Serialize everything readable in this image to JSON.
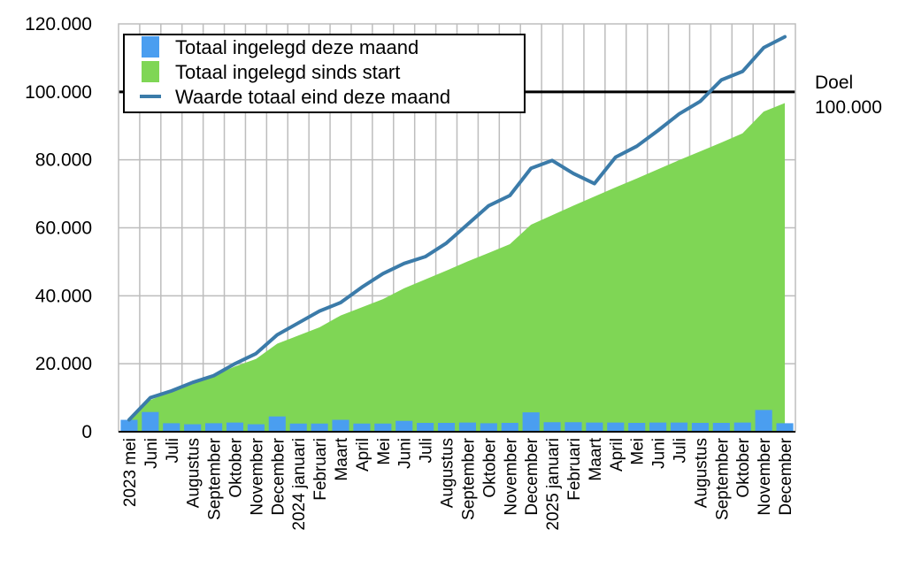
{
  "chart_data": {
    "type": "bar",
    "categories": [
      "2023 mei",
      "Juni",
      "Juli",
      "Augustus",
      "September",
      "Oktober",
      "November",
      "December",
      "2024 januari",
      "Februari",
      "Maart",
      "April",
      "Mei",
      "Juni",
      "Juli",
      "Augustus",
      "September",
      "Oktober",
      "November",
      "December",
      "2025 januari",
      "Februari",
      "Maart",
      "April",
      "Mei",
      "Juni",
      "Juli",
      "Augustus",
      "September",
      "Oktober",
      "November",
      "December"
    ],
    "series": [
      {
        "name": "Totaal ingelegd deze maand",
        "kind": "bar",
        "color": "#4a9ef0",
        "values": [
          3500,
          5800,
          2500,
          2200,
          2500,
          2700,
          2200,
          4500,
          2400,
          2400,
          3500,
          2400,
          2400,
          3200,
          2600,
          2600,
          2700,
          2500,
          2600,
          5700,
          2800,
          2800,
          2700,
          2700,
          2600,
          2700,
          2700,
          2600,
          2600,
          2700,
          6400,
          2500
        ]
      },
      {
        "name": "Totaal ingelegd sinds start",
        "kind": "area",
        "color": "#7fd655",
        "values": [
          3500,
          9300,
          11800,
          14000,
          16500,
          19200,
          21400,
          25900,
          28300,
          30700,
          34200,
          36600,
          39000,
          42200,
          44800,
          47400,
          50100,
          52600,
          55200,
          60900,
          63700,
          66500,
          69200,
          71900,
          74500,
          77200,
          79900,
          82500,
          85100,
          87800,
          94200,
          96700
        ]
      },
      {
        "name": "Waarde totaal eind deze maand",
        "kind": "line",
        "color": "#3b7ba9",
        "values": [
          3500,
          10000,
          12000,
          14500,
          16500,
          20000,
          23000,
          28500,
          32000,
          35500,
          38000,
          42500,
          46500,
          49500,
          51500,
          55500,
          61000,
          66500,
          69500,
          77500,
          79800,
          76000,
          73000,
          80800,
          84000,
          88600,
          93500,
          97200,
          103500,
          106000,
          113000,
          116200
        ]
      }
    ],
    "ylim": [
      0,
      120000
    ],
    "yticks": [
      0,
      20000,
      40000,
      60000,
      80000,
      100000,
      120000
    ],
    "ytick_labels": [
      "0",
      "20.000",
      "40.000",
      "60.000",
      "80.000",
      "100.000",
      "120.000"
    ],
    "goal": {
      "value": 100000,
      "label_line1": "Doel",
      "label_line2": "100.000",
      "color": "#000000"
    },
    "grid": true,
    "legend_position": "top-left"
  }
}
